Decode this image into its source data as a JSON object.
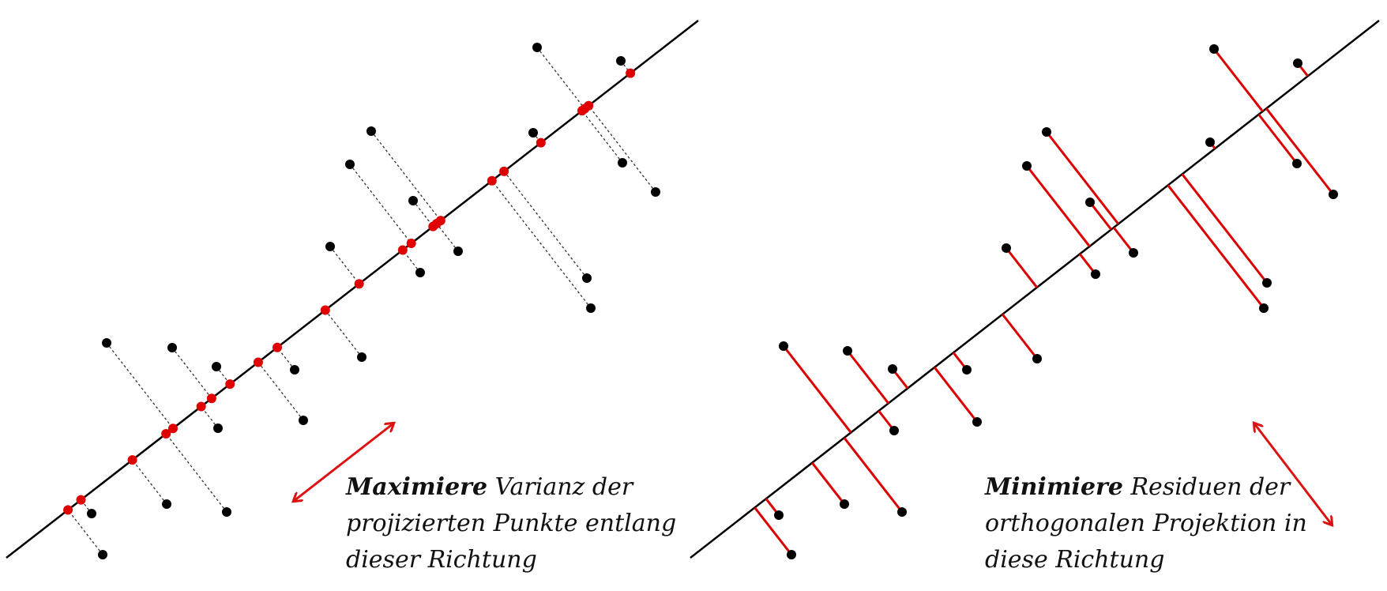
{
  "colors": {
    "point": "#000000",
    "projection": "#e00000",
    "axis": "#000000",
    "dashed": "#333333",
    "residual": "#dd0000",
    "arrow": "#dd1111"
  },
  "panels": {
    "left": {
      "caption": {
        "bold": "Maximiere",
        "line1": " Varianz der",
        "line2": "projizierten Punkte entlang",
        "line3": "dieser Richtung"
      }
    },
    "right": {
      "caption": {
        "bold": "Minimiere",
        "line1": " Residuen der",
        "line2": "orthogonalen Projektion in",
        "line3": "diese Richtung"
      }
    }
  }
}
